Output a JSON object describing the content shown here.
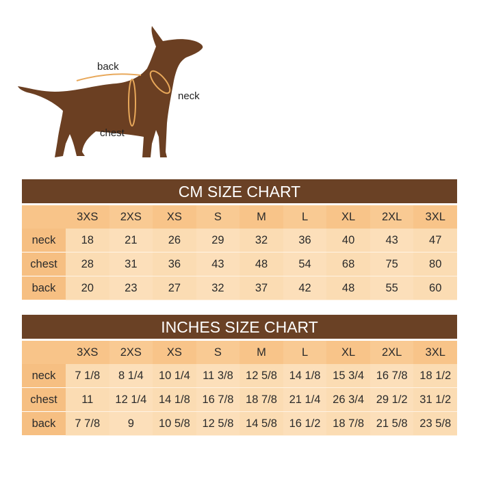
{
  "dog": {
    "labels": {
      "back": "back",
      "neck": "neck",
      "chest": "chest"
    },
    "colors": {
      "body": "#6b3f22",
      "measure": "#e8a85a"
    }
  },
  "sizes": [
    "3XS",
    "2XS",
    "XS",
    "S",
    "M",
    "L",
    "XL",
    "2XL",
    "3XL"
  ],
  "cm": {
    "title": "CM SIZE CHART",
    "rows": [
      {
        "label": "neck",
        "values": [
          "18",
          "21",
          "26",
          "29",
          "32",
          "36",
          "40",
          "43",
          "47"
        ]
      },
      {
        "label": "chest",
        "values": [
          "28",
          "31",
          "36",
          "43",
          "48",
          "54",
          "68",
          "75",
          "80"
        ]
      },
      {
        "label": "back",
        "values": [
          "20",
          "23",
          "27",
          "32",
          "37",
          "42",
          "48",
          "55",
          "60"
        ]
      }
    ]
  },
  "inches": {
    "title": "INCHES SIZE CHART",
    "rows": [
      {
        "label": "neck",
        "values": [
          "7 1/8",
          "8 1/4",
          "10 1/4",
          "11 3/8",
          "12 5/8",
          "14 1/8",
          "15 3/4",
          "16 7/8",
          "18 1/2"
        ]
      },
      {
        "label": "chest",
        "values": [
          "11",
          "12 1/4",
          "14 1/8",
          "16 7/8",
          "18 7/8",
          "21 1/4",
          "26 3/4",
          "29 1/2",
          "31 1/2"
        ]
      },
      {
        "label": "back",
        "values": [
          "7 7/8",
          "9",
          "10 5/8",
          "12 5/8",
          "14 5/8",
          "16 1/2",
          "18 7/8",
          "21 5/8",
          "23 5/8"
        ]
      }
    ]
  },
  "colors": {
    "header": "#6a4125",
    "size_row": "#f8c489",
    "cells": "#fbdcb3"
  }
}
